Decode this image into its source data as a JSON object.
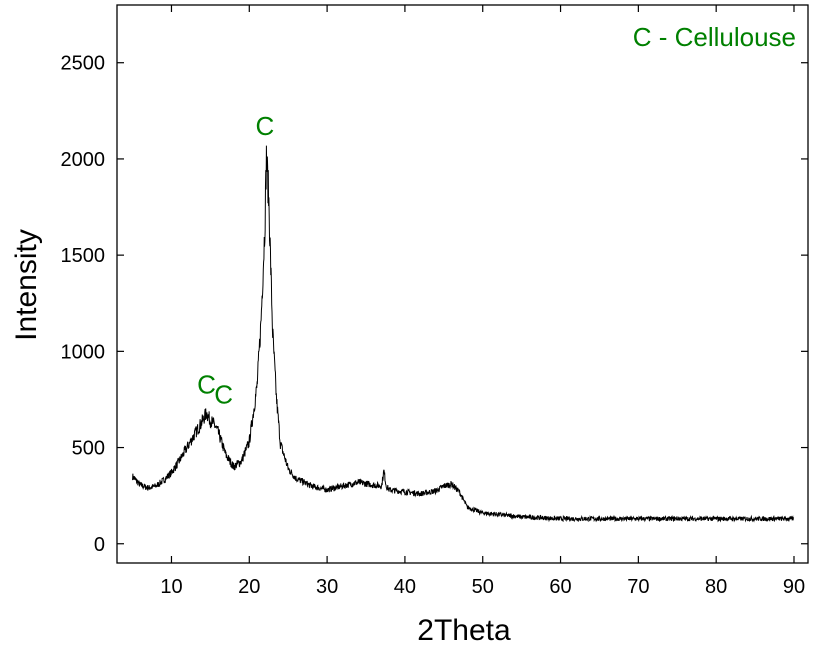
{
  "chart_data": {
    "type": "line",
    "title": "",
    "xlabel": "2Theta",
    "ylabel": "Intensity",
    "xlim": [
      3,
      91.8
    ],
    "ylim": [
      -100,
      2800
    ],
    "x_ticks": [
      10,
      20,
      30,
      40,
      50,
      60,
      70,
      80,
      90
    ],
    "y_ticks": [
      0,
      500,
      1000,
      1500,
      2000,
      2500
    ],
    "grid": false,
    "line_color": "#000000",
    "series": [
      {
        "x": [
          5,
          6,
          7,
          8,
          9,
          10,
          11,
          12,
          13,
          14,
          14.5,
          15,
          15.5,
          16,
          17,
          18,
          19,
          20,
          21,
          21.5,
          22,
          22.2,
          22.5,
          23,
          23.5,
          24,
          25,
          26,
          28,
          30,
          32,
          34,
          36,
          37,
          37.3,
          37.6,
          38,
          40,
          42,
          44,
          45,
          46,
          47,
          48,
          50,
          55,
          60,
          65,
          70,
          75,
          80,
          85,
          90
        ],
        "y": [
          350,
          305,
          290,
          300,
          330,
          370,
          430,
          500,
          570,
          640,
          680,
          640,
          620,
          580,
          460,
          400,
          430,
          530,
          820,
          1150,
          1650,
          2010,
          1800,
          1100,
          750,
          520,
          390,
          340,
          300,
          280,
          300,
          320,
          305,
          300,
          380,
          300,
          280,
          270,
          260,
          275,
          300,
          310,
          270,
          190,
          160,
          140,
          130,
          130,
          130,
          130,
          130,
          130,
          130
        ]
      }
    ],
    "annotations": [
      {
        "text": "C",
        "x": 14.5,
        "y": 780,
        "dx": -1,
        "dy": 0
      },
      {
        "text": "C",
        "x": 16.7,
        "y": 730,
        "dx": -1,
        "dy": 0
      },
      {
        "text": "C",
        "x": 22,
        "y": 2125,
        "dx": -1,
        "dy": 0
      }
    ],
    "annotation_color": "#008000",
    "note": "C - Cellulouse"
  }
}
